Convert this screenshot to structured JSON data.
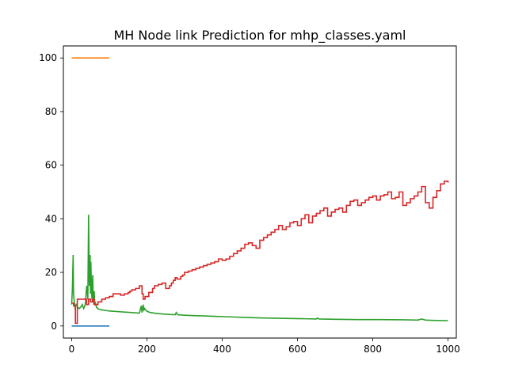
{
  "chart_data": {
    "type": "line",
    "title": "MH Node link Prediction for mhp_classes.yaml",
    "xlabel": "",
    "ylabel": "",
    "xlim": [
      -22,
      1022
    ],
    "ylim": [
      -4.5,
      104.5
    ],
    "xticks": [
      0,
      200,
      400,
      600,
      800,
      1000
    ],
    "yticks": [
      0,
      20,
      40,
      60,
      80,
      100
    ],
    "grid": false,
    "series": [
      {
        "color": "#1f77b4",
        "step": false,
        "x": [
          0,
          100
        ],
        "y": [
          0,
          0
        ]
      },
      {
        "color": "#ff7f0e",
        "step": false,
        "x": [
          0,
          100
        ],
        "y": [
          100,
          100
        ]
      },
      {
        "color": "#2ca02c",
        "step": false,
        "x": [
          0,
          2,
          4,
          5,
          7,
          9,
          12,
          16,
          20,
          24,
          28,
          32,
          36,
          40,
          43,
          45,
          47,
          48,
          49,
          50,
          51,
          52,
          53,
          54,
          55,
          56,
          57,
          58,
          59,
          60,
          61,
          62,
          63,
          64,
          65,
          66,
          67,
          68,
          70,
          72,
          75,
          80,
          90,
          100,
          120,
          140,
          160,
          180,
          185,
          187,
          189,
          190,
          192,
          194,
          196,
          198,
          200,
          205,
          210,
          220,
          240,
          260,
          275,
          278,
          282,
          300,
          340,
          380,
          420,
          460,
          500,
          540,
          580,
          620,
          650,
          653,
          657,
          700,
          760,
          820,
          880,
          920,
          930,
          940,
          960,
          1000
        ],
        "y": [
          8,
          14,
          26.5,
          12,
          9,
          7,
          8,
          7,
          6.5,
          7,
          8,
          6.5,
          8,
          15,
          10,
          41.5,
          15,
          22,
          26.5,
          12,
          24,
          18,
          13,
          10,
          14,
          19,
          12,
          10,
          8,
          13,
          9,
          8,
          9,
          8,
          7.5,
          7,
          7,
          6.6,
          6.4,
          6.3,
          6.2,
          6,
          5.8,
          5.6,
          5.4,
          5.2,
          5,
          4.8,
          7.5,
          5,
          7,
          8,
          6,
          6.5,
          6,
          5.8,
          5.5,
          5.2,
          5,
          4.8,
          4.5,
          4.3,
          4.2,
          5,
          4.2,
          4,
          3.8,
          3.6,
          3.4,
          3.2,
          3,
          2.9,
          2.8,
          2.7,
          2.6,
          3,
          2.6,
          2.5,
          2.4,
          2.4,
          2.3,
          2.2,
          2.6,
          2.2,
          2.1,
          2
        ]
      },
      {
        "color": "#d62728",
        "step": true,
        "x": [
          0,
          5,
          10,
          15,
          20,
          40,
          45,
          50,
          55,
          60,
          70,
          80,
          90,
          100,
          110,
          130,
          140,
          150,
          155,
          160,
          170,
          180,
          187,
          190,
          195,
          205,
          215,
          220,
          230,
          240,
          250,
          260,
          265,
          270,
          275,
          280,
          290,
          295,
          300,
          310,
          320,
          330,
          340,
          350,
          360,
          370,
          380,
          390,
          400,
          410,
          420,
          430,
          440,
          450,
          460,
          470,
          480,
          490,
          500,
          510,
          520,
          530,
          540,
          550,
          560,
          570,
          580,
          590,
          600,
          610,
          620,
          630,
          640,
          650,
          660,
          670,
          680,
          690,
          700,
          710,
          720,
          730,
          740,
          750,
          760,
          770,
          780,
          790,
          800,
          810,
          820,
          830,
          840,
          850,
          860,
          870,
          880,
          890,
          900,
          910,
          920,
          930,
          940,
          950,
          960,
          970,
          980,
          990,
          1000
        ],
        "y": [
          8.5,
          7.5,
          1,
          10,
          10,
          8,
          10,
          9,
          10,
          8,
          9,
          10,
          10.5,
          11,
          12,
          11.5,
          12,
          12.5,
          13,
          13.5,
          14,
          15,
          12,
          10,
          11,
          12.5,
          14,
          15,
          15.5,
          16,
          14,
          15,
          16,
          17,
          18,
          17.5,
          18.5,
          19,
          20,
          20.5,
          21,
          21.5,
          22,
          22.5,
          23,
          23.5,
          24,
          25,
          24.5,
          25,
          26,
          27,
          28,
          29,
          30.5,
          31,
          30,
          29,
          32,
          33,
          34,
          35,
          36,
          37.5,
          36,
          37,
          38.5,
          39,
          37.5,
          40,
          41.5,
          38.5,
          41,
          42,
          43,
          44,
          41,
          42.5,
          43.5,
          44,
          42.5,
          45,
          46.5,
          47,
          45,
          46,
          47,
          48,
          48.5,
          47,
          48.5,
          49,
          50,
          47.5,
          48,
          50,
          45,
          46,
          47.5,
          48.5,
          50,
          52,
          46,
          44,
          48,
          50.5,
          53,
          54,
          53.5
        ]
      }
    ]
  }
}
